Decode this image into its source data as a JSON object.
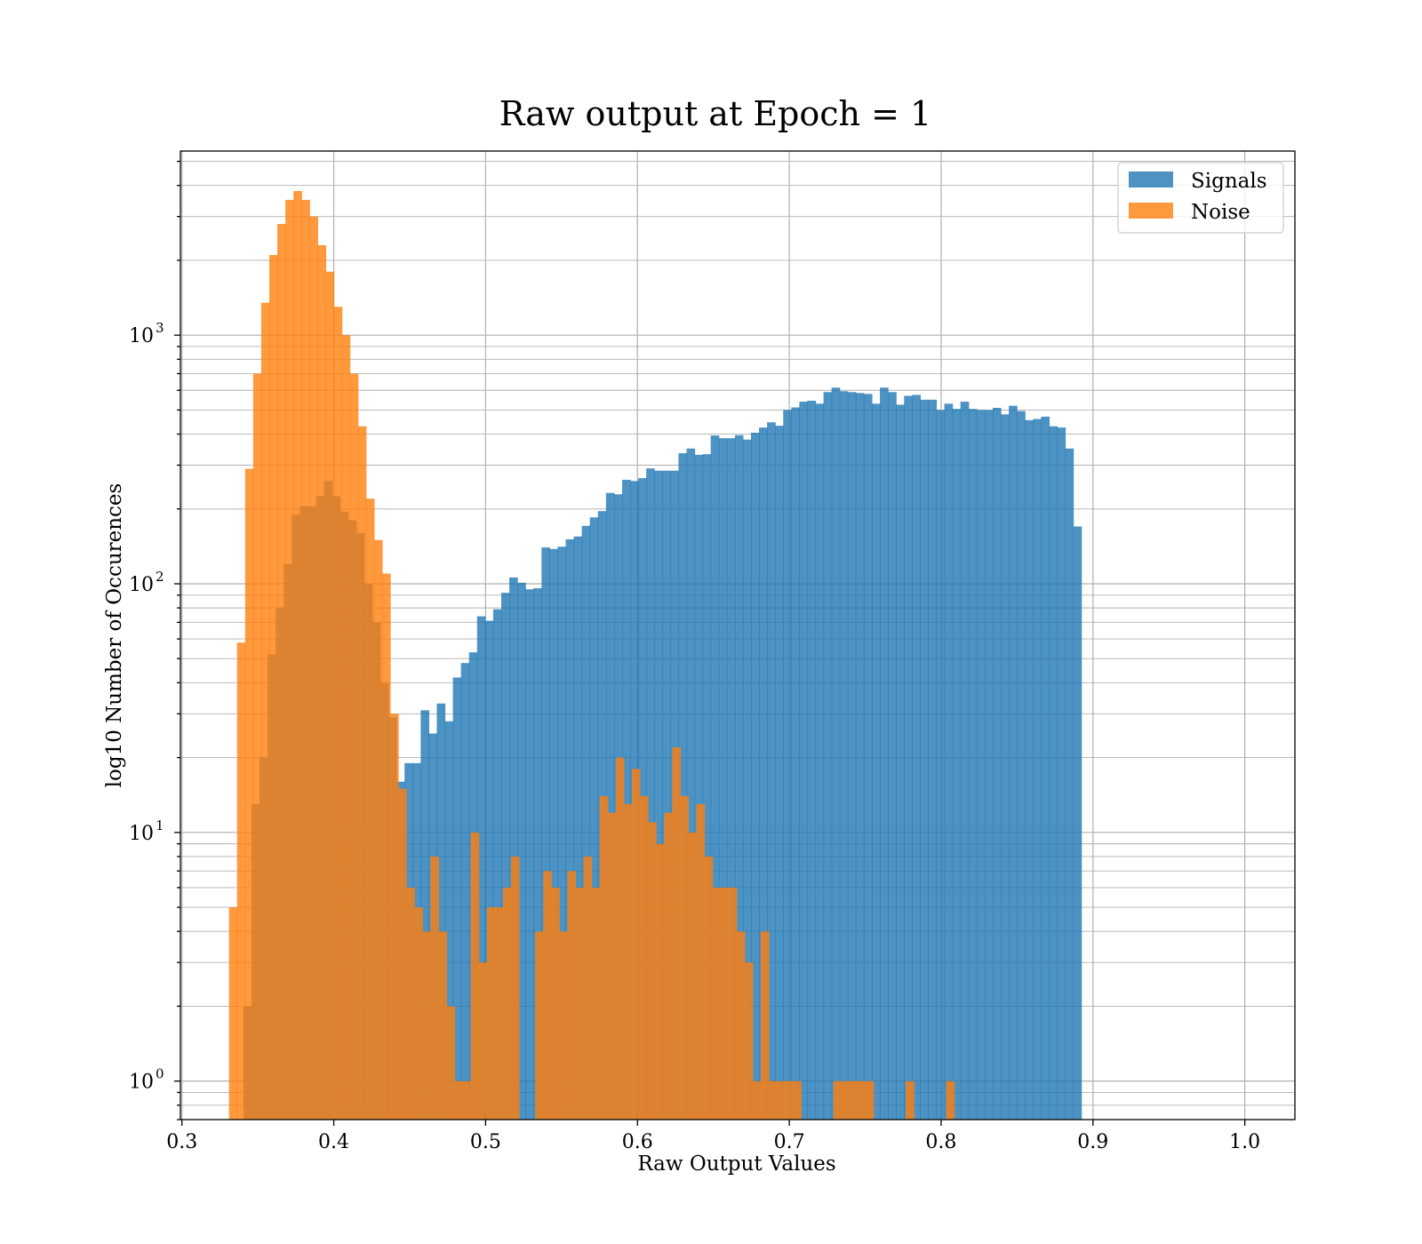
{
  "chart_data": {
    "type": "bar",
    "subtype": "histogram",
    "title": "Raw output at Epoch = 1",
    "xlabel": "Raw Output Values",
    "ylabel": "log10 Number of Occurences",
    "xlim": [
      0.299,
      1.033
    ],
    "ylim": [
      0.7,
      5500
    ],
    "yscale": "log",
    "grid": true,
    "legend_position": "top-right",
    "x_ticks": [
      "0.3",
      "0.4",
      "0.5",
      "0.6",
      "0.7",
      "0.8",
      "0.9",
      "1.0"
    ],
    "x_tick_values": [
      0.3,
      0.4,
      0.5,
      0.6,
      0.7,
      0.8,
      0.9,
      1.0
    ],
    "y_ticks": [
      {
        "base": "10",
        "exp": "0",
        "value": 1
      },
      {
        "base": "10",
        "exp": "1",
        "value": 10
      },
      {
        "base": "10",
        "exp": "2",
        "value": 100
      },
      {
        "base": "10",
        "exp": "3",
        "value": 1000
      }
    ],
    "series": [
      {
        "name": "Signals",
        "color": "#1f77b4",
        "bin_start": 0.3405,
        "bin_width": 0.005306,
        "counts": [
          2,
          13,
          20,
          52,
          80,
          120,
          190,
          205,
          205,
          225,
          260,
          225,
          195,
          180,
          160,
          100,
          70,
          40,
          29,
          16,
          19,
          19,
          31,
          25,
          33,
          28,
          42,
          48,
          53,
          74,
          71,
          79,
          92,
          106,
          101,
          95,
          96,
          140,
          138,
          141,
          151,
          155,
          171,
          185,
          196,
          232,
          229,
          262,
          259,
          266,
          291,
          285,
          285,
          285,
          335,
          350,
          330,
          332,
          395,
          385,
          385,
          396,
          380,
          405,
          425,
          446,
          432,
          500,
          512,
          540,
          545,
          530,
          590,
          615,
          595,
          590,
          585,
          580,
          530,
          615,
          590,
          525,
          570,
          575,
          550,
          550,
          500,
          530,
          505,
          540,
          505,
          500,
          500,
          510,
          480,
          520,
          495,
          455,
          460,
          470,
          430,
          425,
          350,
          170
        ]
      },
      {
        "name": "Noise",
        "color": "#ff7f0e",
        "bin_start": 0.331,
        "bin_width": 0.005306,
        "counts": [
          5,
          58,
          290,
          700,
          1350,
          2100,
          2800,
          3500,
          3800,
          3500,
          3000,
          2300,
          1800,
          1300,
          1000,
          700,
          430,
          220,
          150,
          110,
          30,
          15,
          6,
          5,
          4,
          8,
          4,
          2,
          1,
          1,
          10,
          3,
          5,
          5,
          6,
          8,
          0,
          0,
          4,
          7,
          6,
          4,
          7,
          6,
          8,
          6,
          14,
          12,
          20,
          13,
          18,
          14,
          11,
          9,
          12,
          22,
          14,
          10,
          13,
          8,
          6,
          6,
          6,
          4,
          3,
          1,
          4,
          1,
          1,
          1,
          1,
          0,
          0,
          0,
          0,
          1,
          1,
          1,
          1,
          1,
          0,
          0,
          0,
          0,
          1,
          0,
          0,
          0,
          0,
          1,
          0
        ]
      }
    ]
  }
}
